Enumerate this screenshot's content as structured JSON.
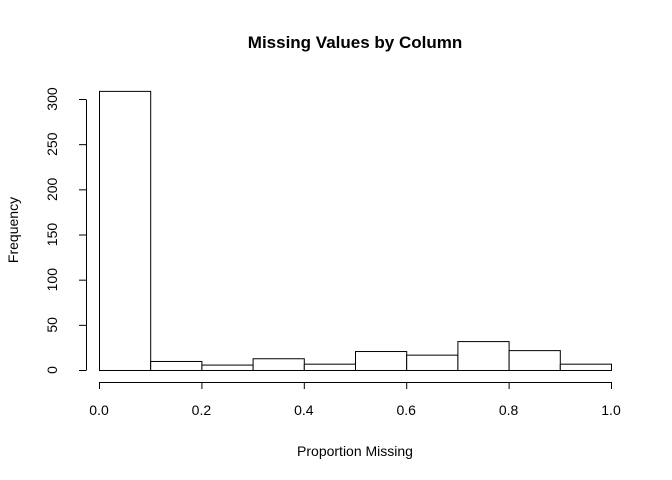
{
  "chart_data": {
    "type": "bar",
    "title": "Missing Values by Column",
    "xlabel": "Proportion Missing",
    "ylabel": "Frequency",
    "bin_edges": [
      0.0,
      0.1,
      0.2,
      0.3,
      0.4,
      0.5,
      0.6,
      0.7,
      0.8,
      0.9,
      1.0
    ],
    "values": [
      309,
      10,
      6,
      13,
      7,
      21,
      17,
      32,
      22,
      7
    ],
    "xlim": [
      0.0,
      1.0
    ],
    "ylim": [
      0,
      300
    ],
    "x_ticks": [
      0.0,
      0.2,
      0.4,
      0.6,
      0.8,
      1.0
    ],
    "x_tick_labels": [
      "0.0",
      "0.2",
      "0.4",
      "0.6",
      "0.8",
      "1.0"
    ],
    "y_ticks": [
      0,
      50,
      100,
      150,
      200,
      250,
      300
    ],
    "y_tick_labels": [
      "0",
      "50",
      "100",
      "150",
      "200",
      "250",
      "300"
    ],
    "grid": false,
    "bar_fill": "#ffffff",
    "bar_stroke": "#000000"
  }
}
